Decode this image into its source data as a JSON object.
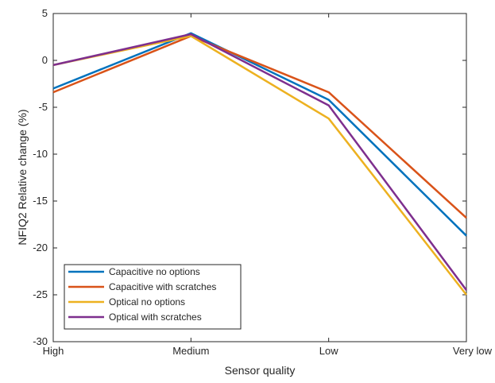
{
  "chart_data": {
    "type": "line",
    "xlabel": "Sensor quality",
    "ylabel": "NFIQ2 Relative change (%)",
    "categories": [
      "High",
      "Medium",
      "Low",
      "Very low"
    ],
    "ylim": [
      -30,
      5
    ],
    "yticks": [
      5,
      0,
      -5,
      -10,
      -15,
      -20,
      -25,
      -30
    ],
    "grid": false,
    "legend_position": "bottom-left",
    "series": [
      {
        "name": "Capacitive no options",
        "color": "#0072BD",
        "values": [
          -3.0,
          2.9,
          -4.2,
          -18.7
        ]
      },
      {
        "name": "Capacitive with scratches",
        "color": "#D95319",
        "values": [
          -3.4,
          2.6,
          -3.4,
          -16.8
        ]
      },
      {
        "name": "Optical no options",
        "color": "#EDB120",
        "values": [
          -0.5,
          2.6,
          -6.2,
          -25.0
        ]
      },
      {
        "name": "Optical with scratches",
        "color": "#7E2F8E",
        "values": [
          -0.5,
          2.8,
          -4.8,
          -24.5
        ]
      }
    ]
  }
}
